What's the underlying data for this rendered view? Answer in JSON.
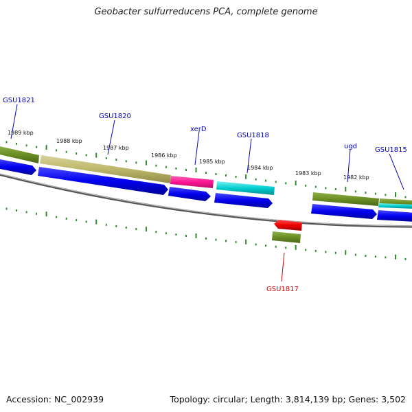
{
  "title": "Geobacter sulfurreducens PCA, complete genome",
  "footer": {
    "accession": "Accession: NC_002939",
    "summary": "Topology: circular; Length: 3,814,139 bp; Genes: 3,502"
  },
  "scale_labels": [
    "1989 kbp",
    "1988 kbp",
    "1987 kbp",
    "1986 kbp",
    "1985 kbp",
    "1984 kbp",
    "1983 kbp",
    "1982 kbp"
  ],
  "gene_labels": [
    {
      "text": "GSU1821",
      "color": "#0000b3"
    },
    {
      "text": "GSU1820",
      "color": "#0000b3"
    },
    {
      "text": "xerD",
      "color": "#0000b3"
    },
    {
      "text": "GSU1818",
      "color": "#0000b3"
    },
    {
      "text": "ugd",
      "color": "#0000b3"
    },
    {
      "text": "GSU1815",
      "color": "#0000b3"
    },
    {
      "text": "GSU1817",
      "color": "#cc0000"
    }
  ],
  "colors": {
    "forward_cds": "#0000ee",
    "reverse_cds": "#ee0000",
    "cog_olive": "#6b8e23",
    "cog_khaki": "#bdb76b",
    "cog_pink": "#ff1493",
    "cog_cyan": "#00ced1",
    "tick_green": "#2e8b2e",
    "backbone": "#888888"
  }
}
